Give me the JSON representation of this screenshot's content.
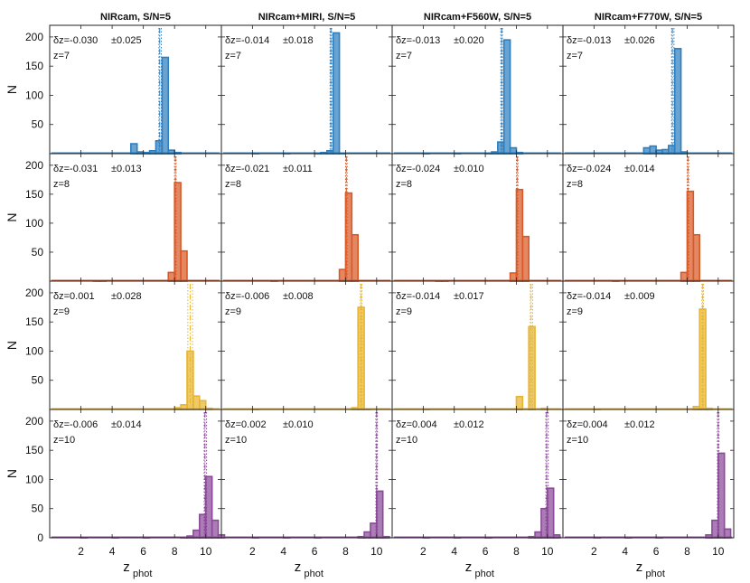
{
  "figure": {
    "column_titles": [
      "NIRcam, S/N=5",
      "NIRcam+MIRI, S/N=5",
      "NIRcam+F560W, S/N=5",
      "NIRcam+F770W, S/N=5"
    ],
    "row_labels": [
      "z=7",
      "z=8",
      "z=9",
      "z=10"
    ],
    "ylabel": "N",
    "xlabel_main": "z",
    "xlabel_sub": "phot",
    "row_colors": [
      "#2f7fbf",
      "#d95a27",
      "#e8b530",
      "#8b4a99"
    ]
  },
  "chart_data": {
    "type": "bar",
    "xlim": [
      0,
      11
    ],
    "ylim": [
      0,
      220
    ],
    "xticks": [
      2,
      4,
      6,
      8,
      10
    ],
    "yticks": [
      50,
      100,
      150,
      200
    ],
    "bin_width": 0.4,
    "panels": [
      {
        "column": "NIRcam, S/N=5",
        "z_true": 7,
        "dz": "δz=-0.030",
        "sigma": "±0.025",
        "z_median": 7.2,
        "z_lines": [
          7.0,
          7.05,
          7.15
        ],
        "bins": [
          [
            5.2,
            17
          ],
          [
            5.6,
            3
          ],
          [
            6.0,
            2
          ],
          [
            6.4,
            5
          ],
          [
            6.8,
            22
          ],
          [
            7.2,
            165
          ],
          [
            7.6,
            6
          ],
          [
            8.0,
            2
          ]
        ]
      },
      {
        "column": "NIRcam+MIRI, S/N=5",
        "z_true": 7,
        "dz": "δz=-0.014",
        "sigma": "±0.018",
        "z_median": 7.2,
        "z_lines": [
          7.0,
          7.05,
          7.1
        ],
        "bins": [
          [
            2.0,
            1
          ],
          [
            4.0,
            1
          ],
          [
            6.0,
            1
          ],
          [
            6.4,
            2
          ],
          [
            6.8,
            5
          ],
          [
            7.2,
            207
          ],
          [
            7.6,
            1
          ]
        ]
      },
      {
        "column": "NIRcam+F560W, S/N=5",
        "z_true": 7,
        "dz": "δz=-0.013",
        "sigma": "±0.020",
        "z_median": 7.2,
        "z_lines": [
          7.0,
          7.05,
          7.1
        ],
        "bins": [
          [
            2.0,
            1
          ],
          [
            4.0,
            1
          ],
          [
            6.0,
            1
          ],
          [
            6.4,
            3
          ],
          [
            6.8,
            20
          ],
          [
            7.2,
            195
          ],
          [
            7.6,
            10
          ],
          [
            8.0,
            2
          ]
        ]
      },
      {
        "column": "NIRcam+F770W, S/N=5",
        "z_true": 7,
        "dz": "δz=-0.013",
        "sigma": "±0.026",
        "z_median": 7.2,
        "z_lines": [
          7.0,
          7.05,
          7.15
        ],
        "bins": [
          [
            5.2,
            10
          ],
          [
            5.6,
            13
          ],
          [
            6.0,
            6
          ],
          [
            6.4,
            7
          ],
          [
            6.8,
            14
          ],
          [
            7.2,
            180
          ],
          [
            7.6,
            3
          ]
        ]
      },
      {
        "column": "NIRcam, S/N=5",
        "z_true": 8,
        "dz": "δz=-0.031",
        "sigma": "±0.013",
        "z_median": 8.2,
        "z_lines": [
          8.0,
          8.05,
          8.1
        ],
        "bins": [
          [
            2.8,
            1
          ],
          [
            3.2,
            1
          ],
          [
            7.6,
            15
          ],
          [
            8.0,
            170
          ],
          [
            8.4,
            52
          ]
        ]
      },
      {
        "column": "NIRcam+MIRI, S/N=5",
        "z_true": 8,
        "dz": "δz=-0.021",
        "sigma": "±0.011",
        "z_median": 8.2,
        "z_lines": [
          8.0,
          8.05,
          8.1
        ],
        "bins": [
          [
            3.2,
            1
          ],
          [
            7.6,
            20
          ],
          [
            8.0,
            152
          ],
          [
            8.4,
            80
          ]
        ]
      },
      {
        "column": "NIRcam+F560W, S/N=5",
        "z_true": 8,
        "dz": "δz=-0.024",
        "sigma": "±0.010",
        "z_median": 8.2,
        "z_lines": [
          8.0,
          8.05,
          8.1
        ],
        "bins": [
          [
            2.8,
            1
          ],
          [
            3.2,
            1
          ],
          [
            7.6,
            14
          ],
          [
            8.0,
            158
          ],
          [
            8.4,
            77
          ]
        ]
      },
      {
        "column": "NIRcam+F770W, S/N=5",
        "z_true": 8,
        "dz": "δz=-0.024",
        "sigma": "±0.014",
        "z_median": 8.2,
        "z_lines": [
          8.0,
          8.05,
          8.1
        ],
        "bins": [
          [
            3.2,
            1
          ],
          [
            7.6,
            15
          ],
          [
            8.0,
            155
          ],
          [
            8.4,
            80
          ]
        ]
      },
      {
        "column": "NIRcam, S/N=5",
        "z_true": 9,
        "dz": "δz=0.001",
        "sigma": "±0.028",
        "z_median": 9.0,
        "z_lines": [
          8.85,
          9.0,
          9.15
        ],
        "bins": [
          [
            8.0,
            3
          ],
          [
            8.4,
            8
          ],
          [
            8.8,
            100
          ],
          [
            9.2,
            23
          ],
          [
            9.6,
            15
          ],
          [
            10.0,
            2
          ]
        ]
      },
      {
        "column": "NIRcam+MIRI, S/N=5",
        "z_true": 9,
        "dz": "δz=-0.006",
        "sigma": "±0.008",
        "z_median": 9.0,
        "z_lines": [
          8.95,
          9.0,
          9.05
        ],
        "bins": [
          [
            2.0,
            1
          ],
          [
            8.4,
            3
          ],
          [
            8.8,
            175
          ],
          [
            9.2,
            1
          ]
        ]
      },
      {
        "column": "NIRcam+F560W, S/N=5",
        "z_true": 9,
        "dz": "δz=-0.014",
        "sigma": "±0.017",
        "z_median": 9.0,
        "z_lines": [
          8.9,
          8.95,
          9.05
        ],
        "bins": [
          [
            2.0,
            1
          ],
          [
            8.0,
            22
          ],
          [
            8.8,
            142
          ],
          [
            9.6,
            2
          ]
        ]
      },
      {
        "column": "NIRcam+F770W, S/N=5",
        "z_true": 9,
        "dz": "δz=-0.014",
        "sigma": "±0.009",
        "z_median": 9.0,
        "z_lines": [
          8.95,
          9.0,
          9.05
        ],
        "bins": [
          [
            2.0,
            1
          ],
          [
            8.4,
            5
          ],
          [
            8.8,
            172
          ],
          [
            9.2,
            2
          ]
        ]
      },
      {
        "column": "NIRcam, S/N=5",
        "z_true": 10,
        "dz": "δz=-0.006",
        "sigma": "±0.014",
        "z_median": 10.0,
        "z_lines": [
          9.9,
          9.95,
          10.05
        ],
        "bins": [
          [
            2.0,
            1
          ],
          [
            4.0,
            1
          ],
          [
            6.0,
            1
          ],
          [
            8.4,
            1
          ],
          [
            8.8,
            3
          ],
          [
            9.2,
            13
          ],
          [
            9.6,
            40
          ],
          [
            10.0,
            105
          ],
          [
            10.4,
            30
          ],
          [
            10.8,
            5
          ]
        ]
      },
      {
        "column": "NIRcam+MIRI, S/N=5",
        "z_true": 10,
        "dz": "δz=0.002",
        "sigma": "±0.010",
        "z_median": 10.0,
        "z_lines": [
          9.95,
          10.0,
          10.05
        ],
        "bins": [
          [
            2.0,
            1
          ],
          [
            4.0,
            1
          ],
          [
            6.0,
            1
          ],
          [
            8.8,
            2
          ],
          [
            9.2,
            10
          ],
          [
            9.6,
            25
          ],
          [
            10.0,
            80
          ],
          [
            10.4,
            2
          ]
        ]
      },
      {
        "column": "NIRcam+F560W, S/N=5",
        "z_true": 10,
        "dz": "δz=0.004",
        "sigma": "±0.012",
        "z_median": 10.0,
        "z_lines": [
          9.9,
          9.95,
          10.05
        ],
        "bins": [
          [
            2.0,
            1
          ],
          [
            4.0,
            1
          ],
          [
            6.0,
            1
          ],
          [
            8.8,
            2
          ],
          [
            9.2,
            10
          ],
          [
            9.6,
            50
          ],
          [
            10.0,
            85
          ],
          [
            10.4,
            5
          ]
        ]
      },
      {
        "column": "NIRcam+F770W, S/N=5",
        "z_true": 10,
        "dz": "δz=0.004",
        "sigma": "±0.012",
        "z_median": 10.0,
        "z_lines": [
          9.95,
          10.0,
          10.05
        ],
        "bins": [
          [
            2.0,
            1
          ],
          [
            4.0,
            1
          ],
          [
            6.0,
            1
          ],
          [
            9.2,
            5
          ],
          [
            9.6,
            30
          ],
          [
            10.0,
            145
          ],
          [
            10.4,
            15
          ]
        ]
      }
    ]
  }
}
